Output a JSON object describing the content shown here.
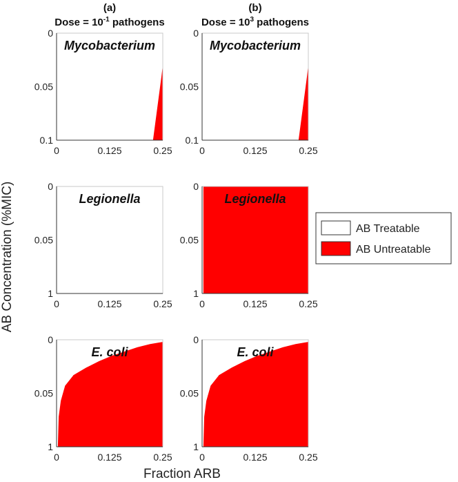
{
  "chart_data": {
    "type": "heatmap",
    "xlabel": "Fraction ARB",
    "ylabel": "AB Concentration (%MIC)",
    "columns": [
      {
        "letter": "(a)",
        "dose_prefix": "Dose = 10",
        "dose_exp": "-1",
        "dose_suffix": " pathogens"
      },
      {
        "letter": "(b)",
        "dose_prefix": "Dose = 10",
        "dose_exp": "3",
        "dose_suffix": " pathogens"
      }
    ],
    "rows": [
      {
        "pathogen": "Mycobacterium",
        "y_ticks": [
          "0",
          "0.05",
          "0.1"
        ],
        "ylim": [
          0,
          0.1
        ],
        "y_inverted": true
      },
      {
        "pathogen": "Legionella",
        "y_ticks": [
          "0",
          "0.05",
          "1"
        ],
        "ylim": [
          0,
          1
        ],
        "y_inverted": true
      },
      {
        "pathogen": "E. coli",
        "y_ticks": [
          "0",
          "0.05",
          "1"
        ],
        "ylim": [
          0,
          1
        ],
        "y_inverted": true
      }
    ],
    "x_ticks": [
      "0",
      "0.125",
      "0.25"
    ],
    "xlim": [
      0,
      0.25
    ],
    "legend": {
      "placement": "right",
      "entries": [
        {
          "label": "AB Treatable",
          "color": "#ffffff"
        },
        {
          "label": "AB Untreatable",
          "color": "#ff0000"
        }
      ]
    },
    "panels": [
      {
        "row": 0,
        "col": 0,
        "untreatable_boundary": {
          "x": [
            0.227,
            0.232,
            0.237,
            0.242,
            0.247,
            0.25
          ],
          "y_fraction_from_top": [
            1.0,
            0.85,
            0.7,
            0.55,
            0.4,
            0.3
          ]
        }
      },
      {
        "row": 0,
        "col": 1,
        "untreatable_boundary": {
          "x": [
            0.227,
            0.232,
            0.237,
            0.242,
            0.247,
            0.25
          ],
          "y_fraction_from_top": [
            1.0,
            0.85,
            0.7,
            0.55,
            0.4,
            0.3
          ]
        }
      },
      {
        "row": 1,
        "col": 0,
        "untreatable_boundary": null
      },
      {
        "row": 1,
        "col": 1,
        "untreatable_fill_from_x": 0.003
      },
      {
        "row": 2,
        "col": 0,
        "untreatable_boundary": {
          "x": [
            0.003,
            0.005,
            0.01,
            0.02,
            0.04,
            0.07,
            0.1,
            0.13,
            0.16,
            0.19,
            0.22,
            0.25
          ],
          "y_fraction_from_top": [
            1.0,
            0.72,
            0.57,
            0.43,
            0.33,
            0.26,
            0.2,
            0.15,
            0.11,
            0.07,
            0.04,
            0.02
          ]
        }
      },
      {
        "row": 2,
        "col": 1,
        "untreatable_boundary": {
          "x": [
            0.003,
            0.005,
            0.01,
            0.02,
            0.04,
            0.07,
            0.1,
            0.13,
            0.16,
            0.19,
            0.22,
            0.25
          ],
          "y_fraction_from_top": [
            1.0,
            0.72,
            0.57,
            0.43,
            0.33,
            0.26,
            0.2,
            0.15,
            0.11,
            0.07,
            0.04,
            0.02
          ]
        }
      }
    ]
  }
}
